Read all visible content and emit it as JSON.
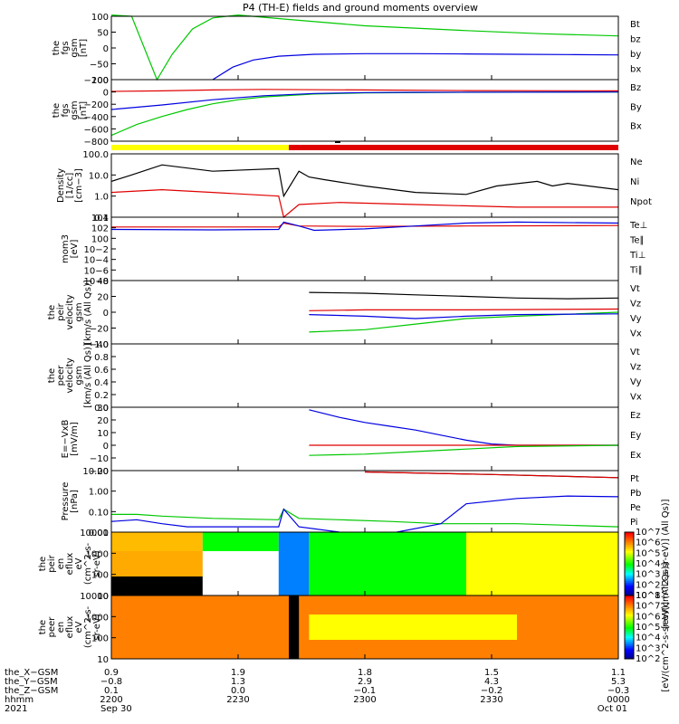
{
  "title": "P4 (TH-E) fields and ground moments overview",
  "colors": {
    "black": "#000000",
    "red": "#e00000",
    "green": "#00c800",
    "blue": "#0000e0",
    "yellow": "#ffff00"
  },
  "chart_data": [
    {
      "type": "line",
      "ylabel": [
        "the",
        "fgs",
        "gsm",
        "[nT]"
      ],
      "yticks": [
        "100",
        "50",
        "0",
        "−50",
        "−100"
      ],
      "ylim": [
        -100,
        100
      ],
      "legend": [
        {
          "name": "Bt",
          "color": "#000000"
        },
        {
          "name": "bz",
          "color": "#e00000"
        },
        {
          "name": "by",
          "color": "#00c800"
        },
        {
          "name": "bx",
          "color": "#0000e0"
        }
      ],
      "series": [
        {
          "name": "by",
          "color": "#00c800",
          "x": [
            0,
            0.04,
            0.07,
            0.09,
            0.12,
            0.16,
            0.2,
            0.25,
            0.35,
            0.5,
            0.7,
            0.85,
            1
          ],
          "y": [
            150,
            100,
            -20,
            -100,
            -20,
            60,
            95,
            110,
            90,
            70,
            55,
            45,
            38
          ]
        },
        {
          "name": "bx",
          "color": "#0000e0",
          "x": [
            0.2,
            0.24,
            0.28,
            0.33,
            0.4,
            0.5,
            0.6,
            0.7,
            0.8,
            0.9,
            1
          ],
          "y": [
            -100,
            -60,
            -38,
            -26,
            -20,
            -18,
            -18,
            -19,
            -20,
            -21,
            -22
          ]
        }
      ]
    },
    {
      "type": "line",
      "ylabel": [
        "the",
        "fgs",
        "gsm",
        "[nT]"
      ],
      "yticks": [
        "200",
        "0",
        "−200",
        "−400",
        "−600",
        "−800"
      ],
      "ylim": [
        -850,
        220
      ],
      "legend": [
        {
          "name": "Bz",
          "color": "#e00000"
        },
        {
          "name": "By",
          "color": "#00c800"
        },
        {
          "name": "Bx",
          "color": "#0000e0"
        }
      ],
      "series": [
        {
          "name": "Bz",
          "color": "#e00000",
          "x": [
            0,
            0.1,
            0.2,
            0.3,
            0.5,
            0.7,
            1
          ],
          "y": [
            15,
            25,
            40,
            50,
            40,
            30,
            25
          ]
        },
        {
          "name": "By",
          "color": "#00c800",
          "x": [
            0,
            0.05,
            0.1,
            0.15,
            0.2,
            0.25,
            0.3,
            0.4,
            0.5,
            0.7,
            1
          ],
          "y": [
            -750,
            -560,
            -420,
            -300,
            -200,
            -130,
            -80,
            -30,
            -10,
            0,
            5
          ]
        },
        {
          "name": "Bx",
          "color": "#0000e0",
          "x": [
            0,
            0.1,
            0.2,
            0.3,
            0.4,
            0.5,
            0.6,
            1
          ],
          "y": [
            -300,
            -220,
            -130,
            -60,
            -20,
            -5,
            0,
            5
          ]
        }
      ]
    },
    {
      "type": "line",
      "ylabel": [
        "Density",
        "[1/cc]",
        "[cm−3]"
      ],
      "yticks": [
        "100.0",
        "10.0",
        "1.0",
        "0.1"
      ],
      "ylim": [
        0.1,
        100
      ],
      "log": true,
      "legend": [
        {
          "name": "Ne",
          "color": "#e00000"
        },
        {
          "name": "Ni",
          "color": "#000000"
        },
        {
          "name": "Npot",
          "color": "#0000e0"
        }
      ],
      "series": [
        {
          "name": "Ni",
          "color": "#000000",
          "x": [
            0,
            0.04,
            0.1,
            0.2,
            0.33,
            0.34,
            0.37,
            0.39,
            0.42,
            0.5,
            0.6,
            0.7,
            0.76,
            0.84,
            0.87,
            0.9,
            1
          ],
          "y": [
            5,
            10,
            30,
            15,
            20,
            1,
            15,
            8,
            6,
            3,
            1.5,
            1.2,
            3,
            5,
            3,
            4,
            2
          ]
        },
        {
          "name": "Ne",
          "color": "#e00000",
          "x": [
            0,
            0.1,
            0.2,
            0.33,
            0.34,
            0.37,
            0.45,
            0.6,
            0.8,
            1
          ],
          "y": [
            1.5,
            2,
            1.5,
            1,
            0.1,
            0.4,
            0.5,
            0.4,
            0.3,
            0.3
          ]
        }
      ]
    },
    {
      "type": "line",
      "ylabel": [
        "mom3",
        "[eV]"
      ],
      "yticks": [
        "104",
        "102",
        "100",
        "10−2",
        "10−4",
        "10−6",
        "10−8"
      ],
      "ylim": [
        -8,
        5
      ],
      "legend": [
        {
          "name": "Te⊥",
          "color": "#e00000"
        },
        {
          "name": "Te∥",
          "color": "#000000"
        },
        {
          "name": "Ti⊥",
          "color": "#0000e0"
        },
        {
          "name": "Ti∥",
          "color": "#00c800"
        }
      ],
      "series": [
        {
          "name": "Te",
          "color": "#e00000",
          "x": [
            0,
            0.33,
            0.34,
            0.37,
            0.5,
            0.7,
            1
          ],
          "y": [
            3,
            3,
            3.8,
            3.2,
            3.1,
            3.2,
            3.3
          ]
        },
        {
          "name": "Ti",
          "color": "#0000e0",
          "x": [
            0,
            0.2,
            0.33,
            0.34,
            0.37,
            0.4,
            0.5,
            0.6,
            0.7,
            0.8,
            1
          ],
          "y": [
            2.5,
            2.4,
            2.5,
            4,
            3.2,
            2.3,
            2.6,
            3.2,
            3.8,
            4,
            3.8
          ]
        }
      ]
    },
    {
      "type": "line",
      "ylabel": [
        "the",
        "peir",
        "velocity",
        "gsm",
        "[km/s (All Qs)]"
      ],
      "yticks": [
        "40",
        "20",
        "0",
        "−20",
        "−40"
      ],
      "ylim": [
        -40,
        40
      ],
      "legend": [
        {
          "name": "Vt",
          "color": "#000000"
        },
        {
          "name": "Vz",
          "color": "#e00000"
        },
        {
          "name": "Vy",
          "color": "#00c800"
        },
        {
          "name": "Vx",
          "color": "#0000e0"
        }
      ],
      "series": [
        {
          "name": "Vt",
          "color": "#000000",
          "x": [
            0.39,
            0.5,
            0.6,
            0.7,
            0.8,
            0.9,
            1
          ],
          "y": [
            25,
            24,
            22,
            20,
            18,
            17,
            18
          ]
        },
        {
          "name": "Vz",
          "color": "#e00000",
          "x": [
            0.39,
            0.5,
            0.7,
            1
          ],
          "y": [
            2,
            3,
            3,
            4
          ]
        },
        {
          "name": "Vy",
          "color": "#00c800",
          "x": [
            0.39,
            0.5,
            0.6,
            0.7,
            0.8,
            1
          ],
          "y": [
            -25,
            -22,
            -15,
            -8,
            -5,
            0
          ]
        },
        {
          "name": "Vx",
          "color": "#0000e0",
          "x": [
            0.39,
            0.5,
            0.6,
            0.7,
            0.8,
            1
          ],
          "y": [
            -3,
            -5,
            -8,
            -5,
            -3,
            -2
          ]
        }
      ]
    },
    {
      "type": "line",
      "ylabel": [
        "the",
        "peer",
        "velocity",
        "gsm",
        "[km/s (All Qs)]"
      ],
      "yticks": [
        "1.0",
        "0.8",
        "0.6",
        "0.4",
        "0.2",
        "0.0"
      ],
      "ylim": [
        0,
        1
      ],
      "legend": [
        {
          "name": "Vt",
          "color": "#000000"
        },
        {
          "name": "Vz",
          "color": "#e00000"
        },
        {
          "name": "Vy",
          "color": "#00c800"
        },
        {
          "name": "Vx",
          "color": "#0000e0"
        }
      ],
      "series": []
    },
    {
      "type": "line",
      "ylabel": [
        "E=−VxB",
        "[mV/m]"
      ],
      "yticks": [
        "30",
        "20",
        "10",
        "0",
        "−10",
        "−20"
      ],
      "ylim": [
        -20,
        30
      ],
      "legend": [
        {
          "name": "Ez",
          "color": "#e00000"
        },
        {
          "name": "Ey",
          "color": "#00c800"
        },
        {
          "name": "Ex",
          "color": "#0000e0"
        }
      ],
      "series": [
        {
          "name": "Ex",
          "color": "#0000e0",
          "x": [
            0.39,
            0.45,
            0.5,
            0.55,
            0.6,
            0.65,
            0.7,
            0.75,
            0.8,
            0.9,
            1
          ],
          "y": [
            28,
            22,
            18,
            15,
            12,
            8,
            4,
            1,
            0,
            0,
            0
          ]
        },
        {
          "name": "Ez",
          "color": "#e00000",
          "x": [
            0.39,
            0.6,
            1
          ],
          "y": [
            0,
            0,
            0
          ]
        },
        {
          "name": "Ey",
          "color": "#00c800",
          "x": [
            0.39,
            0.5,
            0.6,
            0.7,
            0.8,
            1
          ],
          "y": [
            -8,
            -7,
            -5,
            -3,
            -1,
            0
          ]
        }
      ]
    },
    {
      "type": "line",
      "ylabel": [
        "Pressure",
        "[nPa]"
      ],
      "yticks": [
        "10.00",
        "1.00",
        "0.10",
        "0.01"
      ],
      "ylim": [
        0.01,
        30
      ],
      "log": true,
      "legend": [
        {
          "name": "Pt",
          "color": "#000000"
        },
        {
          "name": "Pb",
          "color": "#e00000"
        },
        {
          "name": "Pe",
          "color": "#00c800"
        },
        {
          "name": "Pi",
          "color": "#0000e0"
        }
      ],
      "series": [
        {
          "name": "Pt",
          "color": "#000000",
          "x": [
            0.5,
            0.75,
            1
          ],
          "y": [
            25,
            18,
            12
          ]
        },
        {
          "name": "Pb",
          "color": "#e00000",
          "x": [
            0.5,
            0.75,
            1
          ],
          "y": [
            25,
            18,
            12
          ]
        },
        {
          "name": "Pe",
          "color": "#00c800",
          "x": [
            0,
            0.05,
            0.1,
            0.2,
            0.33,
            0.34,
            0.37,
            0.45,
            0.55,
            0.65,
            0.8,
            1
          ],
          "y": [
            0.1,
            0.1,
            0.08,
            0.06,
            0.05,
            0.2,
            0.06,
            0.05,
            0.04,
            0.03,
            0.03,
            0.02
          ]
        },
        {
          "name": "Pi",
          "color": "#0000e0",
          "x": [
            0,
            0.05,
            0.1,
            0.15,
            0.2,
            0.33,
            0.34,
            0.37,
            0.45,
            0.55,
            0.65,
            0.7,
            0.8,
            0.9,
            1
          ],
          "y": [
            0.04,
            0.05,
            0.03,
            0.02,
            0.02,
            0.02,
            0.2,
            0.02,
            0.01,
            0.008,
            0.03,
            0.4,
            0.8,
            1.1,
            1
          ]
        }
      ]
    },
    {
      "type": "heatmap",
      "ylabel": [
        "the",
        "peir",
        "en",
        "eflux",
        "eV",
        "(cm^2-s-",
        "sr-eV)"
      ],
      "yticks": [
        "10000",
        "1000",
        "100",
        "10"
      ],
      "colorbar": {
        "ticks": [
          "10^7",
          "10^6",
          "10^5",
          "10^4",
          "10^3",
          "10^2",
          "10^1"
        ],
        "label": "[eV/(cm^2-s-sr-eV)] (All Qs)]"
      },
      "regions": [
        {
          "x": [
            0,
            0.18
          ],
          "band": "top",
          "level": 0.78
        },
        {
          "x": [
            0,
            0.18
          ],
          "band": "mid",
          "level": 0.8
        },
        {
          "x": [
            0,
            0.18
          ],
          "band": "low",
          "level": 0
        },
        {
          "x": [
            0.18,
            0.33
          ],
          "band": "top",
          "level": 0.5
        },
        {
          "x": [
            0.33,
            0.39
          ],
          "band": "all",
          "level": 0.25
        },
        {
          "x": [
            0.39,
            0.7
          ],
          "band": "all",
          "level": 0.5
        },
        {
          "x": [
            0.7,
            1
          ],
          "band": "all",
          "level": 0.7
        }
      ]
    },
    {
      "type": "heatmap",
      "ylabel": [
        "the",
        "peer",
        "en",
        "eflux",
        "eV",
        "(cm^2-s-",
        "sr-eV)"
      ],
      "yticks": [
        "10000",
        "1000",
        "100",
        "10"
      ],
      "colorbar": {
        "ticks": [
          "10^8",
          "10^7",
          "10^6",
          "10^5",
          "10^4",
          "10^3",
          "10^2"
        ],
        "label": "[eV/(cm^2-s-sr-eV)] (All Qs)]"
      },
      "regions": [
        {
          "x": [
            0,
            1
          ],
          "band": "all",
          "level": 0.85
        },
        {
          "x": [
            0.35,
            0.37
          ],
          "band": "all",
          "level": 0
        },
        {
          "x": [
            0.39,
            0.8
          ],
          "band": "mid",
          "level": 0.7
        }
      ]
    }
  ],
  "footer": {
    "row_labels": [
      "the_X−GSM",
      "the_Y−GSM",
      "the_Z−GSM",
      "hhmm",
      "2021"
    ],
    "columns": [
      {
        "values": [
          "0.9",
          "−0.8",
          "0.1",
          "2200",
          "Sep 30"
        ]
      },
      {
        "values": [
          "1.9",
          "1.3",
          "0.0",
          "2230",
          ""
        ]
      },
      {
        "values": [
          "1.8",
          "2.9",
          "−0.1",
          "2300",
          ""
        ]
      },
      {
        "values": [
          "1.5",
          "4.3",
          "−0.2",
          "2330",
          ""
        ]
      },
      {
        "values": [
          "1.1",
          "5.3",
          "−0.3",
          "0000",
          "Oct 01"
        ]
      }
    ]
  }
}
